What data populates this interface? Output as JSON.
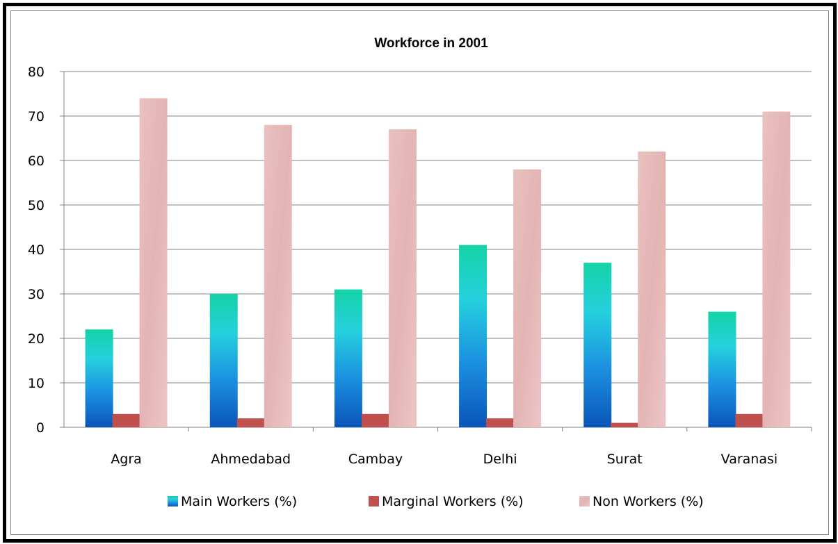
{
  "chart_data": {
    "type": "bar",
    "title": "Workforce  in 2001",
    "xlabel": "",
    "ylabel": "",
    "ylim": [
      0,
      80
    ],
    "yticks": [
      0,
      10,
      20,
      30,
      40,
      50,
      60,
      70,
      80
    ],
    "grid": true,
    "legend_position": "bottom",
    "categories": [
      "Agra",
      "Ahmedabad",
      "Cambay",
      "Delhi",
      "Surat",
      "Varanasi"
    ],
    "series": [
      {
        "name": "Main Workers  (%)",
        "values": [
          22,
          30,
          31,
          41,
          37,
          26
        ],
        "color": "#1f8fd8"
      },
      {
        "name": "Marginal Workers (%)",
        "values": [
          3,
          2,
          3,
          2,
          1,
          3
        ],
        "color": "#c0504d"
      },
      {
        "name": "Non Workers (%)",
        "values": [
          74,
          68,
          67,
          58,
          62,
          71
        ],
        "color": "#e6b9b8"
      }
    ]
  }
}
